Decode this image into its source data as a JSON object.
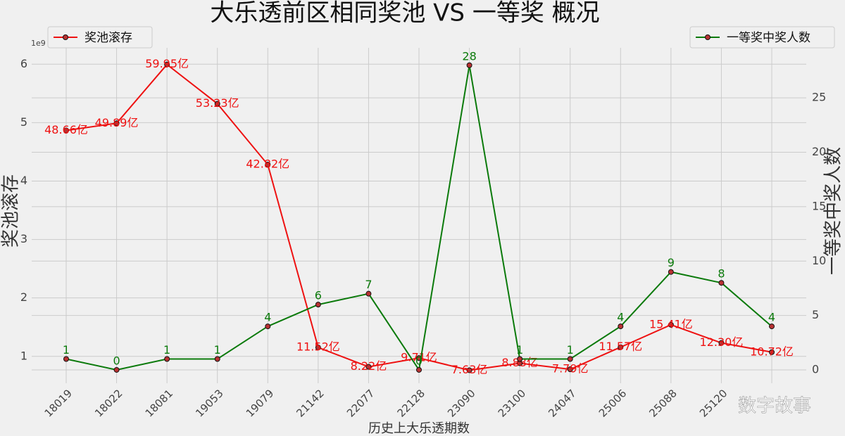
{
  "chart_data": {
    "type": "line",
    "title": "大乐透前区相同奖池 VS 一等奖 概况",
    "xlabel": "历史上大乐透期数",
    "ylabel": "奖池滚存",
    "y2label": "一等奖中奖人数",
    "yoffset_label": "1e9",
    "watermark": "数字故事",
    "categories": [
      "18019",
      "18022",
      "18081",
      "19053",
      "19079",
      "21142",
      "22077",
      "22128",
      "23090",
      "23100",
      "24047",
      "25006",
      "25088",
      "25120",
      null
    ],
    "series": [
      {
        "name": "奖池滚存",
        "color": "#ee1111",
        "marker_color": "#b83232",
        "legend": "upper left",
        "values": [
          4.866,
          4.989,
          5.995,
          5.323,
          4.282,
          1.152,
          0.822,
          0.971,
          0.763,
          0.883,
          0.779,
          1.157,
          1.541,
          1.23,
          1.072
        ],
        "value_labels": [
          "48.66亿",
          "49.89亿",
          "59.95亿",
          "53.23亿",
          "42.82亿",
          "11.52亿",
          "8.22亿",
          "9.71亿",
          "7.63亿",
          "8.83亿",
          "7.79亿",
          "11.57亿",
          "15.41亿",
          "12.30亿",
          "10.72亿"
        ]
      },
      {
        "name": "一等奖中奖人数",
        "color": "#0b7a0b",
        "marker_color": "#b83232",
        "axis": "y2",
        "legend": "upper right",
        "values": [
          1,
          0,
          1,
          1,
          4,
          6,
          7,
          0,
          28,
          1,
          1,
          4,
          9,
          8,
          4
        ]
      }
    ],
    "ylim": [
      0.54,
      6.28
    ],
    "yticks": [
      1,
      2,
      3,
      4,
      5,
      6
    ],
    "y2lim": [
      -1.23,
      29.6
    ],
    "y2ticks": [
      0,
      5,
      10,
      15,
      20,
      25
    ],
    "grid": true
  }
}
